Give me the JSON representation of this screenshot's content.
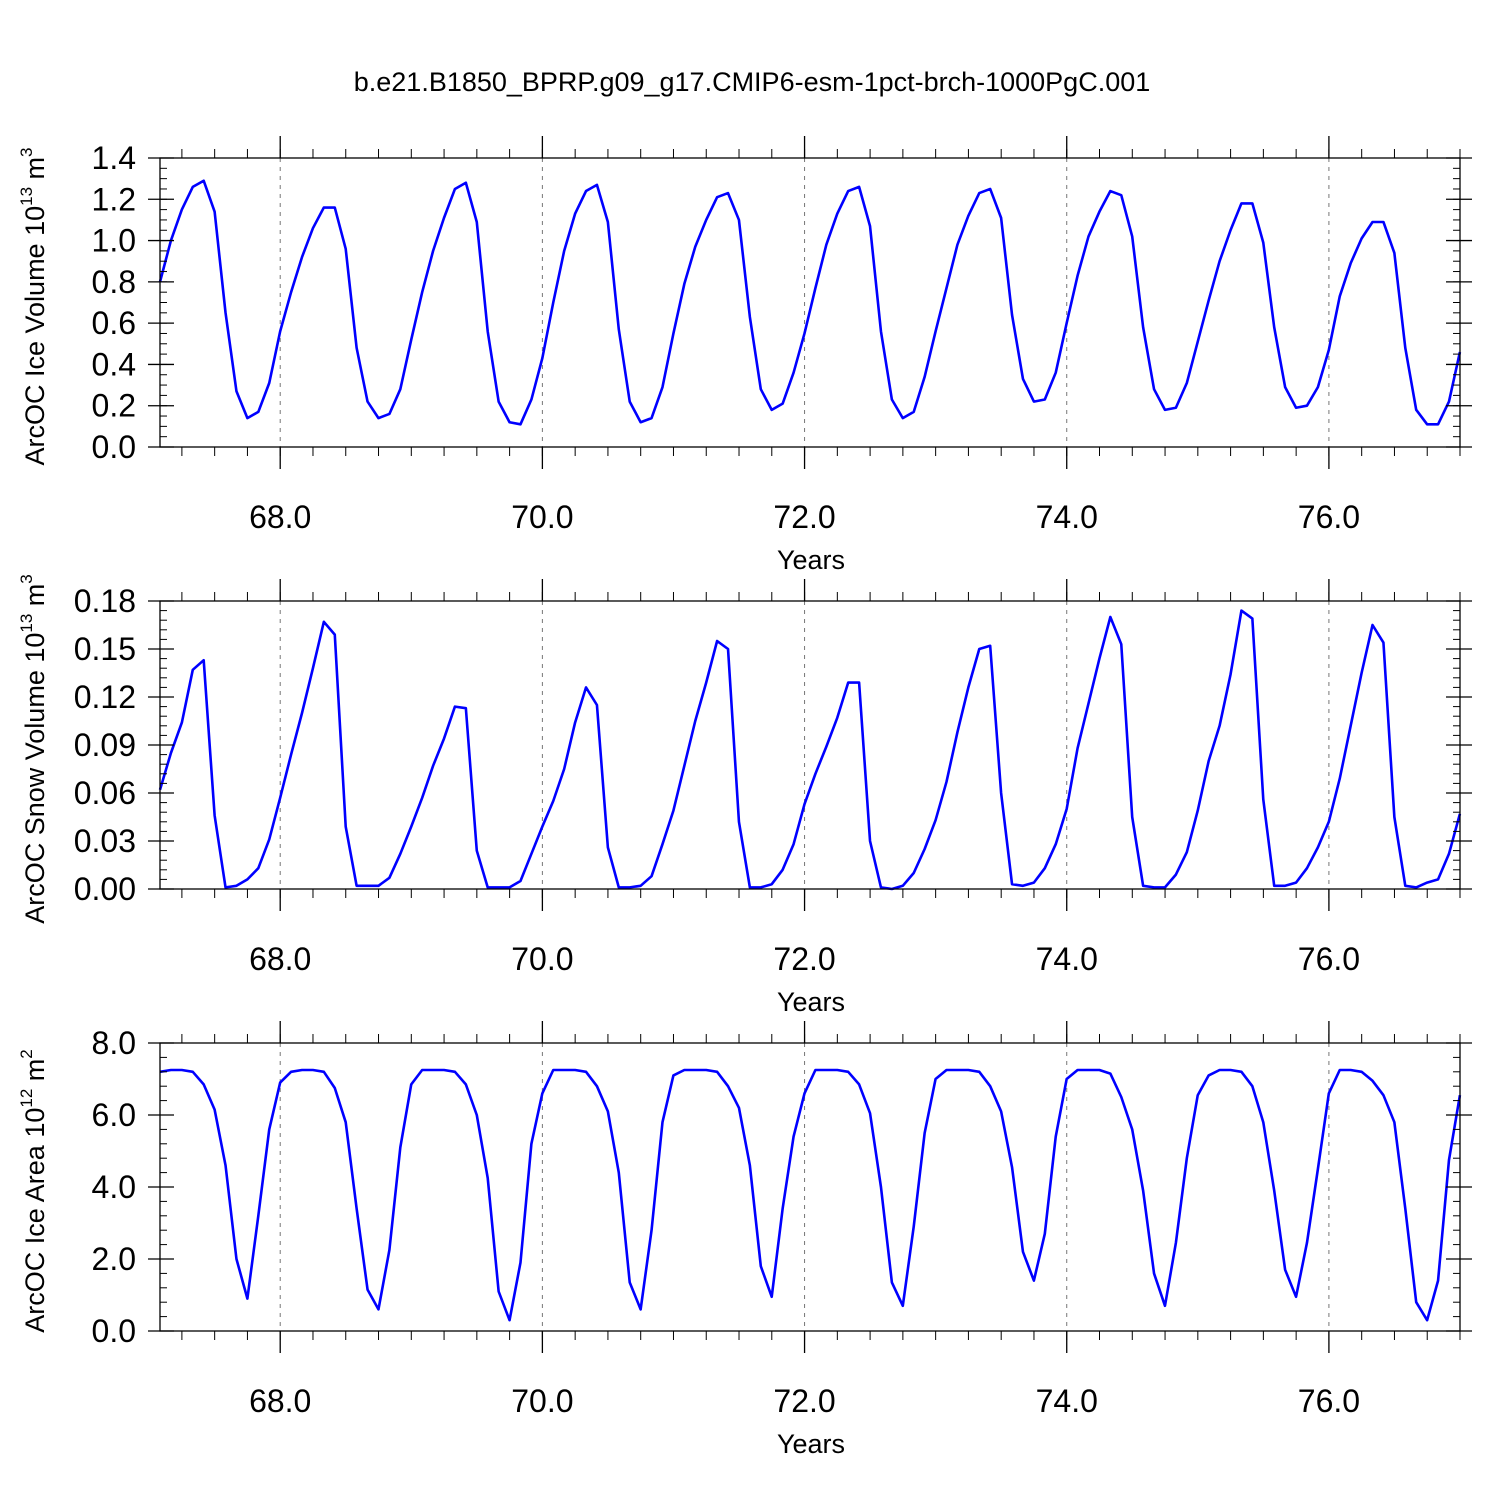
{
  "title": "b.e21.B1850_BPRP.g09_g17.CMIP6-esm-1pct-brch-1000PgC.001",
  "line_color": "#0000ff",
  "chart_data": [
    {
      "type": "line",
      "xlabel": "Years",
      "ylabel": {
        "prefix": "ArcOC Ice Volume 10",
        "exp": "13",
        "unit": " m",
        "unit_exp": "3"
      },
      "xlim": [
        67.083,
        77.0
      ],
      "ylim": [
        0.0,
        1.4
      ],
      "xticks": [
        68.0,
        70.0,
        72.0,
        74.0,
        76.0
      ],
      "xtick_labels": [
        "68.0",
        "70.0",
        "72.0",
        "74.0",
        "76.0"
      ],
      "yticks": [
        0.0,
        0.2,
        0.4,
        0.6,
        0.8,
        1.0,
        1.2,
        1.4
      ],
      "ytick_labels": [
        "0.0",
        "0.2",
        "0.4",
        "0.6",
        "0.8",
        "1.0",
        "1.2",
        "1.4"
      ],
      "y_minor_step": 0.05,
      "x_minor_step": 0.25,
      "x_start": 67.083,
      "x_step": 0.08333,
      "series": [
        {
          "values": [
            0.8,
            1.0,
            1.15,
            1.26,
            1.29,
            1.14,
            0.65,
            0.27,
            0.14,
            0.17,
            0.31,
            0.56,
            0.75,
            0.92,
            1.06,
            1.16,
            1.16,
            0.96,
            0.48,
            0.22,
            0.14,
            0.16,
            0.28,
            0.52,
            0.75,
            0.95,
            1.11,
            1.25,
            1.28,
            1.09,
            0.56,
            0.22,
            0.12,
            0.11,
            0.23,
            0.43,
            0.7,
            0.95,
            1.13,
            1.24,
            1.27,
            1.09,
            0.57,
            0.22,
            0.12,
            0.14,
            0.29,
            0.55,
            0.79,
            0.97,
            1.1,
            1.21,
            1.23,
            1.1,
            0.63,
            0.28,
            0.18,
            0.21,
            0.36,
            0.55,
            0.77,
            0.98,
            1.13,
            1.24,
            1.26,
            1.07,
            0.56,
            0.23,
            0.14,
            0.17,
            0.34,
            0.56,
            0.77,
            0.98,
            1.12,
            1.23,
            1.25,
            1.11,
            0.64,
            0.33,
            0.22,
            0.23,
            0.36,
            0.6,
            0.83,
            1.02,
            1.14,
            1.24,
            1.22,
            1.02,
            0.58,
            0.28,
            0.18,
            0.19,
            0.31,
            0.51,
            0.71,
            0.9,
            1.05,
            1.18,
            1.18,
            0.99,
            0.58,
            0.29,
            0.19,
            0.2,
            0.29,
            0.47,
            0.73,
            0.89,
            1.01,
            1.09,
            1.09,
            0.94,
            0.48,
            0.18,
            0.11,
            0.11,
            0.22,
            0.46
          ]
        }
      ]
    },
    {
      "type": "line",
      "xlabel": "Years",
      "ylabel": {
        "prefix": "ArcOC Snow Volume 10",
        "exp": "13",
        "unit": " m",
        "unit_exp": "3"
      },
      "xlim": [
        67.083,
        77.0
      ],
      "ylim": [
        0.0,
        0.18
      ],
      "xticks": [
        68.0,
        70.0,
        72.0,
        74.0,
        76.0
      ],
      "xtick_labels": [
        "68.0",
        "70.0",
        "72.0",
        "74.0",
        "76.0"
      ],
      "yticks": [
        0.0,
        0.03,
        0.06,
        0.09,
        0.12,
        0.15,
        0.18
      ],
      "ytick_labels": [
        "0.00",
        "0.03",
        "0.06",
        "0.09",
        "0.12",
        "0.15",
        "0.18"
      ],
      "y_minor_step": 0.006,
      "x_minor_step": 0.25,
      "x_start": 67.083,
      "x_step": 0.08333,
      "series": [
        {
          "values": [
            0.062,
            0.085,
            0.104,
            0.137,
            0.143,
            0.046,
            0.001,
            0.002,
            0.006,
            0.013,
            0.031,
            0.057,
            0.084,
            0.11,
            0.138,
            0.167,
            0.159,
            0.039,
            0.002,
            0.002,
            0.002,
            0.007,
            0.022,
            0.039,
            0.057,
            0.077,
            0.094,
            0.114,
            0.113,
            0.024,
            0.001,
            0.001,
            0.001,
            0.005,
            0.022,
            0.039,
            0.055,
            0.075,
            0.104,
            0.126,
            0.115,
            0.026,
            0.001,
            0.001,
            0.002,
            0.008,
            0.028,
            0.049,
            0.077,
            0.105,
            0.129,
            0.155,
            0.15,
            0.042,
            0.001,
            0.001,
            0.003,
            0.012,
            0.028,
            0.053,
            0.072,
            0.089,
            0.107,
            0.129,
            0.129,
            0.03,
            0.001,
            0.0,
            0.002,
            0.01,
            0.025,
            0.043,
            0.067,
            0.098,
            0.126,
            0.15,
            0.152,
            0.06,
            0.003,
            0.002,
            0.004,
            0.013,
            0.028,
            0.05,
            0.088,
            0.116,
            0.144,
            0.17,
            0.153,
            0.045,
            0.002,
            0.001,
            0.001,
            0.009,
            0.023,
            0.049,
            0.08,
            0.102,
            0.134,
            0.174,
            0.169,
            0.056,
            0.002,
            0.002,
            0.004,
            0.013,
            0.026,
            0.042,
            0.069,
            0.102,
            0.135,
            0.165,
            0.154,
            0.045,
            0.002,
            0.001,
            0.004,
            0.006,
            0.022,
            0.047
          ]
        }
      ]
    },
    {
      "type": "line",
      "xlabel": "Years",
      "ylabel": {
        "prefix": "ArcOC Ice Area 10",
        "exp": "12",
        "unit": " m",
        "unit_exp": "2"
      },
      "xlim": [
        67.083,
        77.0
      ],
      "ylim": [
        0.0,
        8.0
      ],
      "xticks": [
        68.0,
        70.0,
        72.0,
        74.0,
        76.0
      ],
      "xtick_labels": [
        "68.0",
        "70.0",
        "72.0",
        "74.0",
        "76.0"
      ],
      "yticks": [
        0.0,
        2.0,
        4.0,
        6.0,
        8.0
      ],
      "ytick_labels": [
        "0.0",
        "2.0",
        "4.0",
        "6.0",
        "8.0"
      ],
      "y_minor_step": 0.4,
      "x_minor_step": 0.25,
      "x_start": 67.083,
      "x_step": 0.08333,
      "series": [
        {
          "values": [
            7.2,
            7.25,
            7.25,
            7.2,
            6.85,
            6.15,
            4.6,
            2.0,
            0.9,
            3.2,
            5.6,
            6.9,
            7.2,
            7.25,
            7.25,
            7.2,
            6.75,
            5.8,
            3.4,
            1.15,
            0.6,
            2.25,
            5.1,
            6.85,
            7.25,
            7.25,
            7.25,
            7.2,
            6.85,
            6.0,
            4.25,
            1.1,
            0.3,
            1.9,
            5.2,
            6.6,
            7.25,
            7.25,
            7.25,
            7.2,
            6.8,
            6.1,
            4.4,
            1.35,
            0.6,
            2.8,
            5.8,
            7.1,
            7.25,
            7.25,
            7.25,
            7.2,
            6.8,
            6.2,
            4.6,
            1.8,
            0.95,
            3.4,
            5.4,
            6.6,
            7.25,
            7.25,
            7.25,
            7.2,
            6.85,
            6.05,
            4.0,
            1.35,
            0.7,
            2.9,
            5.5,
            7.0,
            7.25,
            7.25,
            7.25,
            7.2,
            6.8,
            6.1,
            4.55,
            2.2,
            1.4,
            2.7,
            5.4,
            7.0,
            7.25,
            7.25,
            7.25,
            7.15,
            6.5,
            5.6,
            3.9,
            1.6,
            0.7,
            2.45,
            4.8,
            6.55,
            7.1,
            7.25,
            7.25,
            7.2,
            6.8,
            5.8,
            3.9,
            1.7,
            0.95,
            2.45,
            4.5,
            6.6,
            7.25,
            7.25,
            7.2,
            6.95,
            6.55,
            5.8,
            3.4,
            0.8,
            0.3,
            1.4,
            4.75,
            6.55
          ]
        }
      ]
    }
  ]
}
